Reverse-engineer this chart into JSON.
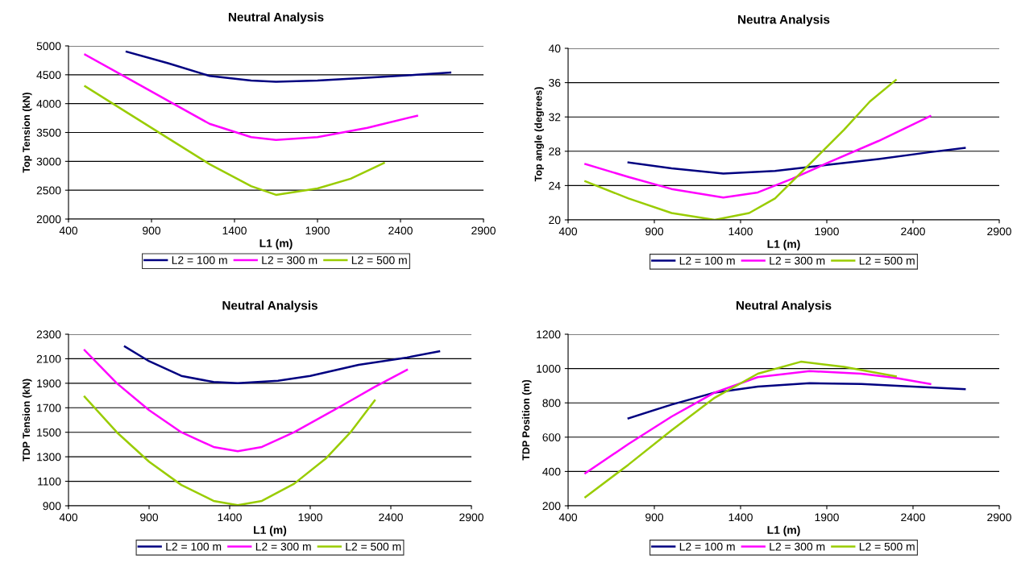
{
  "chart_data": [
    {
      "type": "line",
      "title": "Neutral Analysis",
      "xlabel": "L1 (m)",
      "ylabel": "Top Tension (kN)",
      "xlim": [
        400,
        2900
      ],
      "xticks": [
        400,
        900,
        1400,
        1900,
        2400,
        2900
      ],
      "ylim": [
        2000,
        5000
      ],
      "yticks": [
        2000,
        2500,
        3000,
        3500,
        4000,
        4500,
        5000
      ],
      "grid": "y",
      "legend": "bottom",
      "series": [
        {
          "name": "L2 = 100 m",
          "color": "#000080",
          "x": [
            750,
            1000,
            1250,
            1500,
            1650,
            1900,
            2200,
            2500,
            2700
          ],
          "values": [
            4900,
            4700,
            4480,
            4400,
            4380,
            4400,
            4450,
            4500,
            4540
          ]
        },
        {
          "name": "L2 = 300 m",
          "color": "#ff00ff",
          "x": [
            500,
            750,
            1000,
            1250,
            1500,
            1650,
            1900,
            2200,
            2500
          ],
          "values": [
            4850,
            4450,
            4050,
            3650,
            3420,
            3370,
            3420,
            3580,
            3790
          ]
        },
        {
          "name": "L2 = 500 m",
          "color": "#99cc00",
          "x": [
            500,
            750,
            1000,
            1250,
            1500,
            1650,
            1900,
            2100,
            2300
          ],
          "values": [
            4300,
            3850,
            3400,
            2950,
            2570,
            2420,
            2530,
            2700,
            2970
          ]
        }
      ]
    },
    {
      "type": "line",
      "title": "Neutra Analysis",
      "xlabel": "L1 (m)",
      "ylabel": "Top angle (degrees)",
      "xlim": [
        400,
        2900
      ],
      "xticks": [
        400,
        900,
        1400,
        1900,
        2400,
        2900
      ],
      "ylim": [
        20,
        40
      ],
      "yticks": [
        20,
        24,
        28,
        32,
        36,
        40
      ],
      "grid": "y",
      "legend": "bottom",
      "series": [
        {
          "name": "L2 = 100 m",
          "color": "#000080",
          "x": [
            750,
            1000,
            1300,
            1600,
            1900,
            2200,
            2500,
            2700
          ],
          "values": [
            26.7,
            26.0,
            25.4,
            25.7,
            26.4,
            27.1,
            27.9,
            28.4
          ]
        },
        {
          "name": "L2 = 300 m",
          "color": "#ff00ff",
          "x": [
            500,
            750,
            1000,
            1300,
            1500,
            1700,
            1900,
            2200,
            2500
          ],
          "values": [
            26.5,
            25.0,
            23.6,
            22.6,
            23.2,
            24.8,
            26.6,
            29.2,
            32.1
          ]
        },
        {
          "name": "L2 = 500 m",
          "color": "#99cc00",
          "x": [
            500,
            750,
            1000,
            1250,
            1450,
            1600,
            1800,
            2000,
            2150,
            2300
          ],
          "values": [
            24.5,
            22.5,
            20.8,
            20.0,
            20.8,
            22.5,
            26.5,
            30.5,
            33.8,
            36.3
          ]
        }
      ]
    },
    {
      "type": "line",
      "title": "Neutral Analysis",
      "xlabel": "L1 (m)",
      "ylabel": "TDP Tension (kN)",
      "xlim": [
        400,
        2900
      ],
      "xticks": [
        400,
        900,
        1400,
        1900,
        2400,
        2900
      ],
      "ylim": [
        900,
        2300
      ],
      "yticks": [
        900,
        1100,
        1300,
        1500,
        1700,
        1900,
        2100,
        2300
      ],
      "grid": "y",
      "legend": "bottom",
      "series": [
        {
          "name": "L2 = 100 m",
          "color": "#000080",
          "x": [
            750,
            900,
            1100,
            1300,
            1450,
            1700,
            1900,
            2200,
            2500,
            2700
          ],
          "values": [
            2200,
            2080,
            1960,
            1910,
            1900,
            1920,
            1960,
            2050,
            2110,
            2160
          ]
        },
        {
          "name": "L2 = 300 m",
          "color": "#ff00ff",
          "x": [
            500,
            700,
            900,
            1100,
            1300,
            1450,
            1600,
            1800,
            2100,
            2300,
            2500
          ],
          "values": [
            2170,
            1900,
            1680,
            1500,
            1380,
            1345,
            1380,
            1500,
            1720,
            1870,
            2010
          ]
        },
        {
          "name": "L2 = 500 m",
          "color": "#99cc00",
          "x": [
            500,
            700,
            900,
            1100,
            1300,
            1450,
            1600,
            1800,
            2000,
            2150,
            2300
          ],
          "values": [
            1790,
            1500,
            1260,
            1070,
            940,
            905,
            940,
            1080,
            1290,
            1500,
            1760
          ]
        }
      ]
    },
    {
      "type": "line",
      "title": "Neutral Analysis",
      "xlabel": "L1 (m)",
      "ylabel": "TDP Position (m)",
      "xlim": [
        400,
        2900
      ],
      "xticks": [
        400,
        900,
        1400,
        1900,
        2400,
        2900
      ],
      "ylim": [
        200,
        1200
      ],
      "yticks": [
        200,
        400,
        600,
        800,
        1000,
        1200
      ],
      "grid": "y",
      "legend": "bottom",
      "series": [
        {
          "name": "L2 = 100 m",
          "color": "#000080",
          "x": [
            750,
            1000,
            1250,
            1500,
            1800,
            2100,
            2400,
            2700
          ],
          "values": [
            710,
            790,
            860,
            895,
            915,
            910,
            895,
            880
          ]
        },
        {
          "name": "L2 = 300 m",
          "color": "#ff00ff",
          "x": [
            500,
            750,
            1000,
            1250,
            1500,
            1800,
            2100,
            2300,
            2500
          ],
          "values": [
            390,
            560,
            720,
            860,
            950,
            985,
            970,
            945,
            910
          ]
        },
        {
          "name": "L2 = 500 m",
          "color": "#99cc00",
          "x": [
            500,
            750,
            1000,
            1250,
            1500,
            1750,
            2000,
            2300
          ],
          "values": [
            250,
            440,
            640,
            830,
            970,
            1040,
            1010,
            955
          ]
        }
      ]
    }
  ]
}
